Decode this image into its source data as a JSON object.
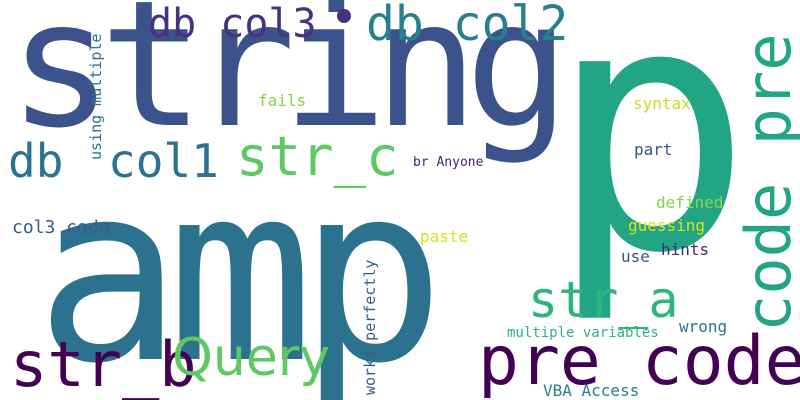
{
  "words": {
    "amp": "amp",
    "p": "p",
    "string": "string",
    "pre_code": "pre code",
    "str_b": "str_b",
    "query": "Query",
    "db": "db",
    "col1": "col1",
    "str_c": "str_c",
    "str_a": "str_a",
    "db_col3": "db col3",
    "db_col2": "db col2",
    "code_pre": "code pre",
    "col3_code": "col3 code",
    "fails": "fails",
    "syntax": "syntax",
    "part": "part",
    "br_anyone": "br Anyone",
    "defined": "defined",
    "guessing": "guessing",
    "paste": "paste",
    "hints": "hints",
    "use": "use",
    "multiple_variables": "multiple variables",
    "wrong": "wrong",
    "vba_access": "VBA Access",
    "using_multiple": "using multiple",
    "works_perfectly": "works perfectly"
  },
  "colors": {
    "navy": "#46327e",
    "indigo": "#3b528b",
    "teal": "#2c728e",
    "green": "#21a585",
    "lime": "#5ec962",
    "yellow": "#c2df23",
    "purple": "#440154"
  }
}
